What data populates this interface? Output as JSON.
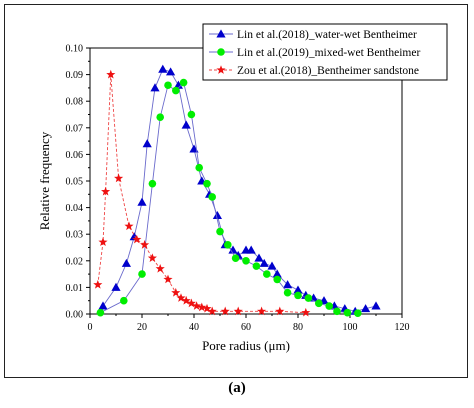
{
  "caption": "(a)",
  "chart_data": {
    "type": "line",
    "title": "",
    "xlabel": "Pore radius (μm)",
    "ylabel": "Relative frequency",
    "xlim": [
      0,
      120
    ],
    "ylim": [
      0,
      0.1
    ],
    "xticks": [
      "0",
      "20",
      "40",
      "60",
      "80",
      "100",
      "120"
    ],
    "yticks": [
      "0.00",
      "0.01",
      "0.02",
      "0.03",
      "0.04",
      "0.05",
      "0.06",
      "0.07",
      "0.08",
      "0.09",
      "0.10"
    ],
    "grid": false,
    "legend_position": "top-right",
    "series": [
      {
        "name": "Lin et al.(2018)_water-wet Bentheimer",
        "color": "#0000cc",
        "marker": "triangle",
        "line_color": "#6a6acc",
        "points": [
          [
            5,
            0.003
          ],
          [
            10,
            0.01
          ],
          [
            14,
            0.019
          ],
          [
            17,
            0.029
          ],
          [
            20,
            0.042
          ],
          [
            22,
            0.064
          ],
          [
            25,
            0.085
          ],
          [
            28,
            0.092
          ],
          [
            31,
            0.091
          ],
          [
            34,
            0.086
          ],
          [
            37,
            0.071
          ],
          [
            40,
            0.062
          ],
          [
            43,
            0.05
          ],
          [
            46,
            0.045
          ],
          [
            49,
            0.037
          ],
          [
            52,
            0.026
          ],
          [
            55,
            0.024
          ],
          [
            57,
            0.022
          ],
          [
            60,
            0.024
          ],
          [
            62,
            0.024
          ],
          [
            65,
            0.021
          ],
          [
            67,
            0.019
          ],
          [
            70,
            0.018
          ],
          [
            72,
            0.015
          ],
          [
            76,
            0.011
          ],
          [
            80,
            0.009
          ],
          [
            83,
            0.007
          ],
          [
            86,
            0.006
          ],
          [
            90,
            0.005
          ],
          [
            94,
            0.003
          ],
          [
            98,
            0.002
          ],
          [
            102,
            0.001
          ],
          [
            106,
            0.002
          ],
          [
            110,
            0.003
          ]
        ]
      },
      {
        "name": "Lin et al.(2019)_mixed-wet Bentheimer",
        "color": "#00ee00",
        "marker": "circle",
        "line_color": "#6a6acc",
        "points": [
          [
            4,
            0.0005
          ],
          [
            13,
            0.005
          ],
          [
            20,
            0.015
          ],
          [
            24,
            0.049
          ],
          [
            27,
            0.074
          ],
          [
            30,
            0.086
          ],
          [
            33,
            0.084
          ],
          [
            36,
            0.087
          ],
          [
            39,
            0.075
          ],
          [
            42,
            0.055
          ],
          [
            45,
            0.049
          ],
          [
            47,
            0.044
          ],
          [
            50,
            0.031
          ],
          [
            53,
            0.026
          ],
          [
            56,
            0.021
          ],
          [
            60,
            0.02
          ],
          [
            64,
            0.018
          ],
          [
            68,
            0.015
          ],
          [
            72,
            0.013
          ],
          [
            76,
            0.008
          ],
          [
            80,
            0.007
          ],
          [
            84,
            0.006
          ],
          [
            88,
            0.004
          ],
          [
            92,
            0.003
          ],
          [
            95,
            0.001
          ],
          [
            99,
            0.0005
          ],
          [
            103,
            0.0003
          ]
        ]
      },
      {
        "name": "Zou et al.(2018)_Bentheimer sandstone",
        "color": "#ee1111",
        "marker": "star",
        "line_color": "#ee4444",
        "points": [
          [
            3,
            0.011
          ],
          [
            5,
            0.027
          ],
          [
            6,
            0.046
          ],
          [
            8,
            0.09
          ],
          [
            11,
            0.051
          ],
          [
            15,
            0.033
          ],
          [
            18,
            0.028
          ],
          [
            21,
            0.026
          ],
          [
            24,
            0.021
          ],
          [
            27,
            0.017
          ],
          [
            30,
            0.013
          ],
          [
            33,
            0.008
          ],
          [
            35,
            0.006
          ],
          [
            37,
            0.005
          ],
          [
            39,
            0.004
          ],
          [
            41,
            0.003
          ],
          [
            43,
            0.0025
          ],
          [
            45,
            0.002
          ],
          [
            47,
            0.001
          ],
          [
            52,
            0.001
          ],
          [
            57,
            0.001
          ],
          [
            66,
            0.001
          ],
          [
            73,
            0.001
          ],
          [
            83,
            0.0005
          ]
        ]
      }
    ]
  }
}
